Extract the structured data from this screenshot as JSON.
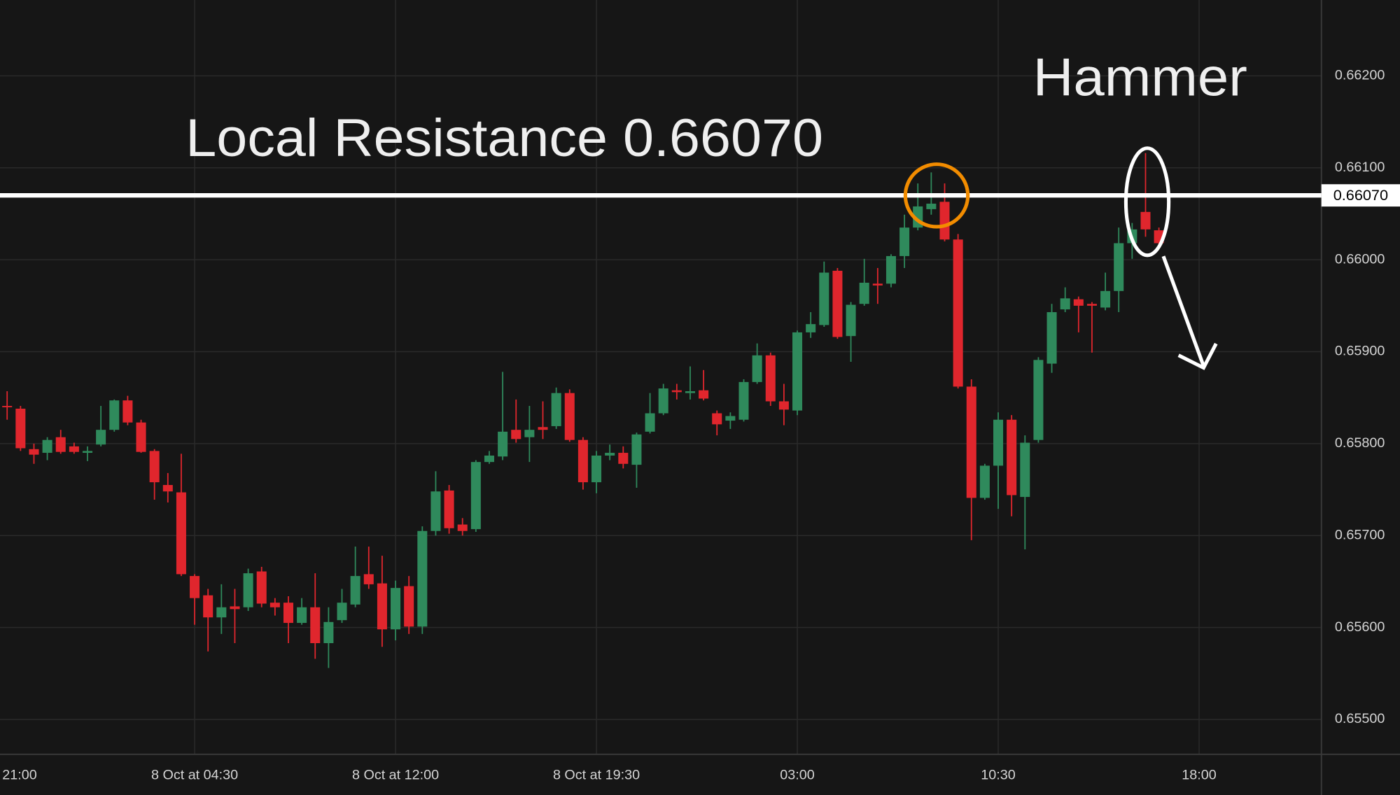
{
  "chart_data": {
    "type": "candlestick",
    "annotations": [
      "Local Resistance 0.66070",
      "Hammer"
    ],
    "resistance": {
      "value": 0.6607,
      "label": "0.66070"
    },
    "up_color": "#2f8a5c",
    "down_color": "#e0262d",
    "grid": true,
    "x": [
      0.5,
      1,
      1.5,
      2,
      2.5,
      3,
      3.5,
      4,
      4.5,
      5,
      5.5,
      6,
      6.5,
      7,
      7.5,
      8,
      8.5,
      9,
      9.5,
      10,
      10.5,
      11,
      11.5,
      12,
      12.5,
      13,
      13.5,
      14,
      14.5,
      15,
      15.5,
      16,
      16.5,
      17,
      17.5,
      18,
      18.5,
      19,
      19.5,
      20,
      20.5,
      21,
      21.5,
      22,
      22.5,
      23,
      23.5,
      24,
      24.5,
      25,
      25.5,
      26,
      26.5,
      27,
      27.5,
      28,
      28.5,
      29,
      29.5,
      30,
      30.5,
      31,
      31.5,
      32,
      32.5,
      33,
      33.5,
      34,
      34.5,
      35,
      35.5,
      36,
      36.5,
      37,
      37.5,
      38,
      38.5,
      39,
      39.5,
      40,
      40.5,
      41,
      41.5,
      42,
      42.5,
      43,
      43.5
    ],
    "open": [
      0.65841,
      0.65838,
      0.65794,
      0.6579,
      0.65807,
      0.65797,
      0.6579,
      0.65799,
      0.65815,
      0.65847,
      0.65823,
      0.65792,
      0.65755,
      0.65747,
      0.65656,
      0.65635,
      0.65611,
      0.65623,
      0.65622,
      0.65661,
      0.65627,
      0.65627,
      0.65605,
      0.65622,
      0.65583,
      0.65608,
      0.65625,
      0.65658,
      0.65648,
      0.65598,
      0.65645,
      0.65601,
      0.65705,
      0.65749,
      0.65712,
      0.65707,
      0.6578,
      0.65786,
      0.65815,
      0.65807,
      0.65818,
      0.65819,
      0.65855,
      0.65804,
      0.65758,
      0.65787,
      0.6579,
      0.65777,
      0.65813,
      0.65833,
      0.65858,
      0.65855,
      0.65858,
      0.65833,
      0.65825,
      0.65826,
      0.65867,
      0.65896,
      0.65846,
      0.65836,
      0.65921,
      0.65929,
      0.65988,
      0.65917,
      0.65952,
      0.65974,
      0.65974,
      0.66004,
      0.66035,
      0.66055,
      0.66063,
      0.66022,
      0.65862,
      0.65741,
      0.65776,
      0.65826,
      0.65742,
      0.65804,
      0.65887,
      0.65946,
      0.65957,
      0.65952,
      0.65948,
      0.65966,
      0.66018,
      0.66052,
      0.66032
    ],
    "high": [
      0.65857,
      0.65841,
      0.658,
      0.65807,
      0.65815,
      0.65801,
      0.65797,
      0.65841,
      0.65848,
      0.65852,
      0.65826,
      0.65794,
      0.65768,
      0.65789,
      0.65658,
      0.65642,
      0.65647,
      0.65642,
      0.65664,
      0.65666,
      0.65632,
      0.65634,
      0.65632,
      0.65659,
      0.65622,
      0.65642,
      0.65688,
      0.65688,
      0.65678,
      0.65651,
      0.65656,
      0.6571,
      0.6577,
      0.65755,
      0.65719,
      0.65782,
      0.65792,
      0.65878,
      0.65848,
      0.65841,
      0.65846,
      0.65861,
      0.65859,
      0.65807,
      0.65792,
      0.65799,
      0.65797,
      0.65812,
      0.65855,
      0.65865,
      0.65865,
      0.65884,
      0.6588,
      0.65836,
      0.65834,
      0.6587,
      0.65909,
      0.65899,
      0.65865,
      0.65923,
      0.65943,
      0.65998,
      0.65991,
      0.65954,
      0.66001,
      0.65991,
      0.66006,
      0.66049,
      0.66083,
      0.66095,
      0.66083,
      0.66028,
      0.6587,
      0.65778,
      0.65834,
      0.65831,
      0.65809,
      0.65894,
      0.65952,
      0.6597,
      0.6596,
      0.65954,
      0.65986,
      0.66035,
      0.6604,
      0.66116,
      0.66035
    ],
    "low": [
      0.65826,
      0.65792,
      0.65778,
      0.65782,
      0.65789,
      0.65789,
      0.65781,
      0.65797,
      0.65813,
      0.6582,
      0.6579,
      0.65739,
      0.65736,
      0.65656,
      0.65603,
      0.65574,
      0.65593,
      0.65583,
      0.65618,
      0.65622,
      0.65613,
      0.65583,
      0.65603,
      0.65566,
      0.65556,
      0.65605,
      0.65622,
      0.65642,
      0.65579,
      0.65586,
      0.65593,
      0.65593,
      0.657,
      0.65702,
      0.657,
      0.65704,
      0.65778,
      0.65782,
      0.65801,
      0.6578,
      0.65805,
      0.65816,
      0.65802,
      0.6575,
      0.65746,
      0.65782,
      0.65773,
      0.65752,
      0.65811,
      0.65831,
      0.65848,
      0.65848,
      0.65847,
      0.65809,
      0.65816,
      0.65824,
      0.65865,
      0.65841,
      0.6582,
      0.65831,
      0.65915,
      0.65927,
      0.65914,
      0.65889,
      0.6595,
      0.65952,
      0.6597,
      0.65991,
      0.66032,
      0.66049,
      0.6602,
      0.6586,
      0.65695,
      0.65739,
      0.65729,
      0.65721,
      0.65685,
      0.65801,
      0.65877,
      0.65943,
      0.65921,
      0.65899,
      0.65945,
      0.65943,
      0.66001,
      0.66025,
      0.66016
    ],
    "close": [
      0.6584,
      0.65795,
      0.65788,
      0.65804,
      0.65791,
      0.65791,
      0.65792,
      0.65815,
      0.65847,
      0.65823,
      0.65791,
      0.65758,
      0.65748,
      0.65658,
      0.65632,
      0.65611,
      0.65622,
      0.6562,
      0.65659,
      0.65626,
      0.65622,
      0.65605,
      0.65622,
      0.65583,
      0.65606,
      0.65627,
      0.65656,
      0.65647,
      0.65598,
      0.65643,
      0.65601,
      0.65705,
      0.65748,
      0.65708,
      0.65705,
      0.6578,
      0.65787,
      0.65813,
      0.65805,
      0.65815,
      0.65815,
      0.65855,
      0.65804,
      0.65758,
      0.65787,
      0.6579,
      0.65778,
      0.6581,
      0.65833,
      0.6586,
      0.65856,
      0.65857,
      0.65849,
      0.65821,
      0.6583,
      0.65867,
      0.65896,
      0.65846,
      0.65837,
      0.65921,
      0.6593,
      0.65986,
      0.65916,
      0.65951,
      0.65975,
      0.65972,
      0.66004,
      0.66035,
      0.66058,
      0.66061,
      0.66022,
      0.65862,
      0.65741,
      0.65776,
      0.65826,
      0.65744,
      0.65801,
      0.65891,
      0.65943,
      0.65958,
      0.6595,
      0.6595,
      0.65966,
      0.66018,
      0.66033,
      0.66033,
      0.66018
    ],
    "xlim": [
      0.23333,
      49.56667
    ],
    "xticks": [
      {
        "value": 0,
        "label": "21:00"
      },
      {
        "value": 7.5,
        "label": "8 Oct at 04:30"
      },
      {
        "value": 15,
        "label": "8 Oct at 12:00"
      },
      {
        "value": 22.5,
        "label": "8 Oct at 19:30"
      },
      {
        "value": 30,
        "label": "03:00"
      },
      {
        "value": 37.5,
        "label": "10:30"
      },
      {
        "value": 45,
        "label": "18:00"
      }
    ],
    "ylim": [
      0.654621,
      0.662825
    ],
    "yticks": [
      {
        "value": 0.655,
        "label": "0.65500"
      },
      {
        "value": 0.656,
        "label": "0.65600"
      },
      {
        "value": 0.657,
        "label": "0.65700"
      },
      {
        "value": 0.658,
        "label": "0.65800"
      },
      {
        "value": 0.659,
        "label": "0.65900"
      },
      {
        "value": 0.66,
        "label": "0.66000"
      },
      {
        "value": 0.661,
        "label": "0.66100"
      },
      {
        "value": 0.662,
        "label": "0.66200"
      }
    ]
  }
}
